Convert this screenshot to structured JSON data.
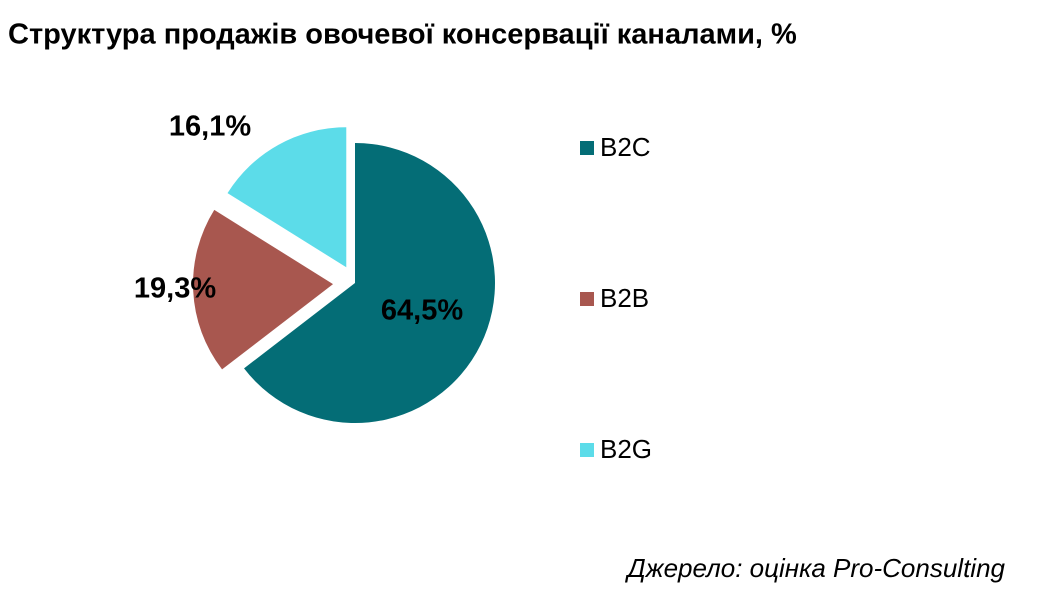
{
  "chart_data": {
    "type": "pie",
    "title": "Структура продажів овочевої консервації каналами, %",
    "categories": [
      "B2C",
      "B2B",
      "B2G"
    ],
    "values": [
      64.5,
      19.3,
      16.1
    ],
    "value_labels": [
      "64,5%",
      "19,3%",
      "16,1%"
    ],
    "colors": [
      "#046d76",
      "#a8574f",
      "#5cdce9"
    ],
    "legend": "right",
    "source": "Джерело: оцінка Pro-Consulting"
  }
}
